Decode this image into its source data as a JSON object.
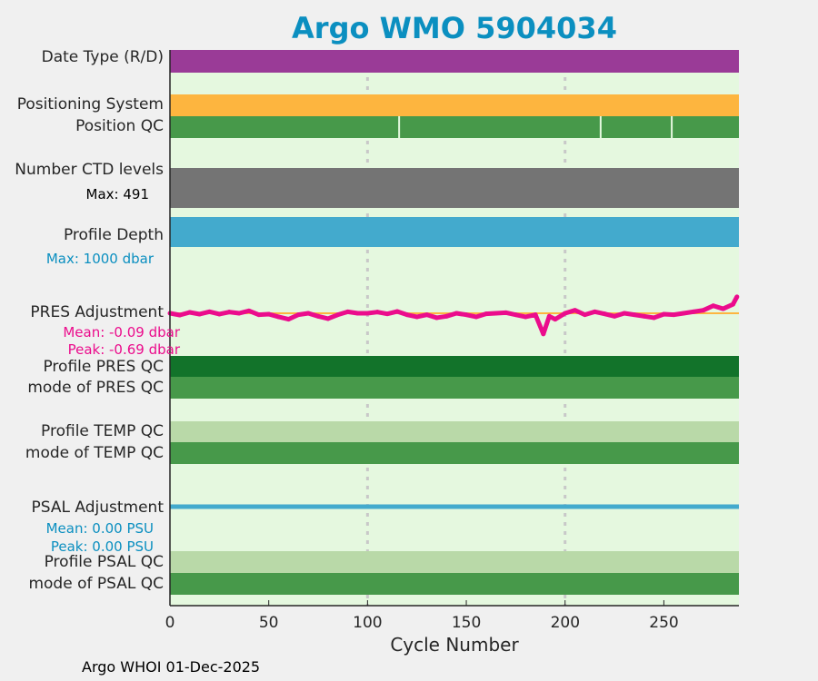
{
  "chart_data": {
    "type": "table",
    "title": "Argo WMO 5904034",
    "xlabel": "Cycle Number",
    "xlim": [
      0,
      288
    ],
    "xticks": [
      "0",
      "50",
      "100",
      "150",
      "200",
      "250"
    ],
    "grid_x": [
      100,
      200
    ],
    "rows": [
      {
        "label": "Date Type (R/D)",
        "color": "#9a3b97"
      },
      {
        "label": "Positioning System",
        "color": "#fdb53f"
      },
      {
        "label": "Position QC",
        "color": "#47994a",
        "gaps": [
          116,
          218,
          254
        ]
      },
      {
        "label": "Number CTD levels",
        "color": "#747474",
        "annotation": "Max: 491"
      },
      {
        "label": "Profile Depth",
        "color": "#43aacd",
        "annotation": "Max: 1000 dbar"
      },
      {
        "label": "PRES Adjustment",
        "color": "#eb0c8c",
        "mean": "Mean: -0.09 dbar",
        "peak": "Peak: -0.69 dbar",
        "series": {
          "x": [
            0,
            5,
            10,
            15,
            20,
            25,
            30,
            35,
            40,
            45,
            50,
            55,
            60,
            65,
            70,
            75,
            80,
            85,
            90,
            95,
            100,
            105,
            110,
            115,
            120,
            125,
            130,
            135,
            140,
            145,
            150,
            155,
            160,
            165,
            170,
            175,
            180,
            185,
            189,
            192,
            195,
            200,
            205,
            210,
            215,
            220,
            225,
            230,
            235,
            240,
            245,
            250,
            255,
            260,
            265,
            270,
            275,
            280,
            285,
            287
          ],
          "y": [
            0.0,
            -0.06,
            0.03,
            -0.03,
            0.05,
            -0.03,
            0.04,
            0.0,
            0.08,
            -0.05,
            -0.03,
            -0.12,
            -0.2,
            -0.05,
            0.0,
            -0.1,
            -0.18,
            -0.05,
            0.05,
            0.0,
            0.0,
            0.04,
            -0.02,
            0.06,
            -0.05,
            -0.12,
            -0.05,
            -0.15,
            -0.1,
            0.0,
            -0.05,
            -0.12,
            -0.02,
            0.0,
            0.02,
            -0.05,
            -0.12,
            -0.05,
            -0.69,
            -0.1,
            -0.2,
            0.0,
            0.1,
            -0.05,
            0.05,
            -0.02,
            -0.1,
            0.0,
            -0.05,
            -0.1,
            -0.15,
            -0.03,
            -0.05,
            0.0,
            0.05,
            0.1,
            0.25,
            0.15,
            0.3,
            0.55
          ]
        }
      },
      {
        "label": "Profile PRES QC",
        "color": "#12732a"
      },
      {
        "label": "mode of PRES QC",
        "color": "#47994a"
      },
      {
        "label": "Profile TEMP QC",
        "color": "#b9d9a8"
      },
      {
        "label": "mode of TEMP QC",
        "color": "#47994a"
      },
      {
        "label": "PSAL Adjustment",
        "color": "#43aacd",
        "mean": "Mean: 0.00 PSU",
        "peak": "Peak: 0.00 PSU"
      },
      {
        "label": "Profile PSAL QC",
        "color": "#b9d9a8"
      },
      {
        "label": "mode of PSAL QC",
        "color": "#47994a"
      }
    ],
    "footer": "Argo WHOI 01-Dec-2025"
  }
}
